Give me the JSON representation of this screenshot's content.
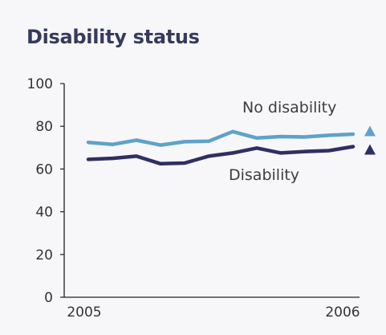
{
  "chart_data": {
    "type": "line",
    "title": "Disability status",
    "xlabel": "",
    "ylabel": "",
    "ylim": [
      0,
      100
    ],
    "yticks": [
      0,
      20,
      40,
      60,
      80,
      100
    ],
    "xtick_labels": [
      "2005",
      "2006"
    ],
    "grid": false,
    "legend": "direct labels at line ends with triangle markers",
    "series": [
      {
        "name": "No disability",
        "color": "#5ea2c9",
        "values": [
          72.5,
          71.5,
          73.5,
          71.2,
          72.8,
          73.0,
          77.5,
          74.5,
          75.2,
          75.0,
          75.8,
          76.3
        ]
      },
      {
        "name": "Disability",
        "color": "#2e3063",
        "values": [
          64.5,
          65.0,
          66.0,
          62.5,
          62.8,
          66.0,
          67.5,
          69.8,
          67.5,
          68.2,
          68.6,
          70.5
        ]
      }
    ]
  }
}
